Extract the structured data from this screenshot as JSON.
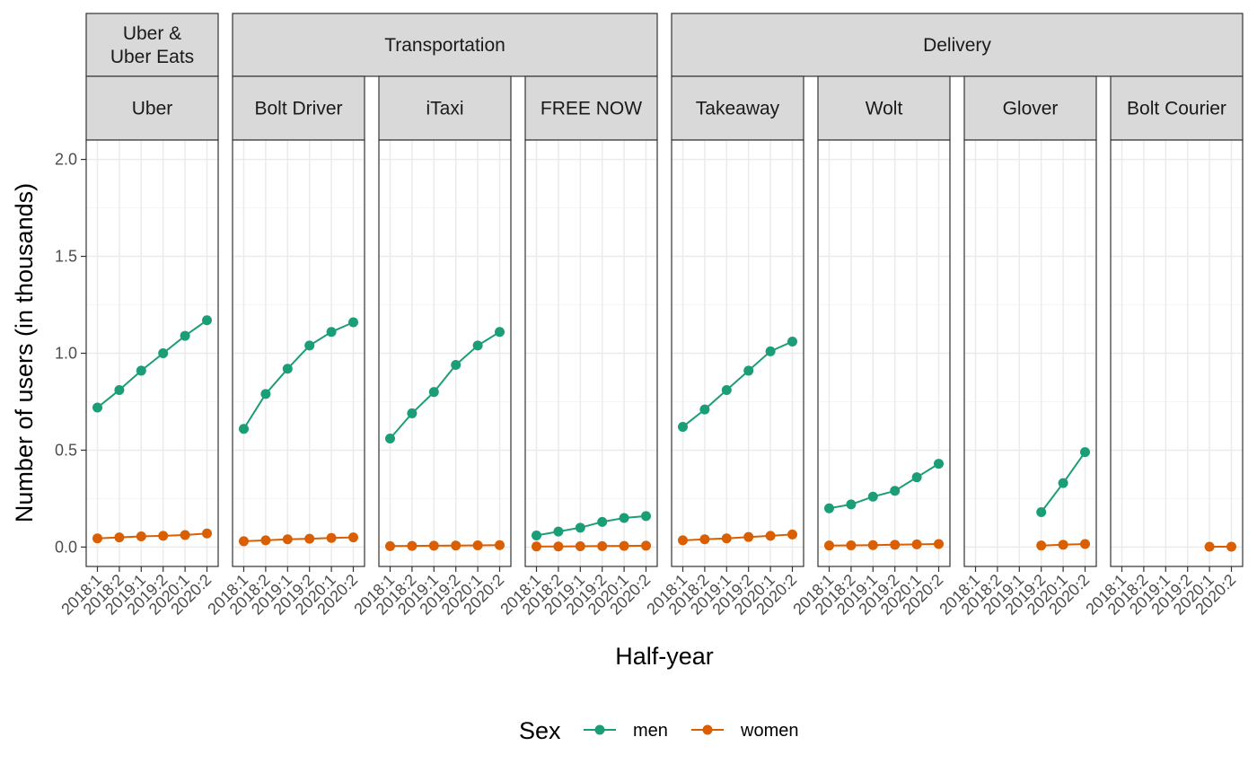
{
  "chart_data": {
    "type": "line",
    "xlabel": "Half-year",
    "ylabel": "Number of users (in thousands)",
    "ylim": [
      -0.1,
      2.1
    ],
    "yticks": [
      0.0,
      0.5,
      1.0,
      1.5,
      2.0
    ],
    "ytick_labels": [
      "0.0",
      "0.5",
      "1.0",
      "1.5",
      "2.0"
    ],
    "categories": [
      "2018:1",
      "2018:2",
      "2019:1",
      "2019:2",
      "2020:1",
      "2020:2"
    ],
    "grid": true,
    "legend": {
      "position": "bottom",
      "title": "Sex",
      "entries": [
        {
          "name": "men",
          "color": "#1B9E77"
        },
        {
          "name": "women",
          "color": "#D95F02"
        }
      ]
    },
    "groups": [
      {
        "label": "Uber &\nUber Eats",
        "label_lines": [
          "Uber &",
          "Uber Eats"
        ],
        "span": [
          "Uber",
          "Uber"
        ]
      },
      {
        "label": "Transportation",
        "label_lines": [
          "Transportation"
        ],
        "span": [
          "Bolt Driver",
          "FREE NOW"
        ]
      },
      {
        "label": "Delivery",
        "label_lines": [
          "Delivery"
        ],
        "span": [
          "Takeaway",
          "Bolt Courier"
        ]
      }
    ],
    "panels": [
      {
        "name": "Uber",
        "series": [
          {
            "name": "men",
            "values": [
              0.72,
              0.81,
              0.91,
              1.0,
              1.09,
              1.17
            ]
          },
          {
            "name": "women",
            "values": [
              0.045,
              0.05,
              0.055,
              0.058,
              0.062,
              0.07
            ]
          }
        ]
      },
      {
        "name": "Bolt Driver",
        "series": [
          {
            "name": "men",
            "values": [
              0.61,
              0.79,
              0.92,
              1.04,
              1.11,
              1.16
            ]
          },
          {
            "name": "women",
            "values": [
              0.03,
              0.035,
              0.04,
              0.043,
              0.047,
              0.05
            ]
          }
        ]
      },
      {
        "name": "iTaxi",
        "series": [
          {
            "name": "men",
            "values": [
              0.56,
              0.69,
              0.8,
              0.94,
              1.04,
              1.11
            ]
          },
          {
            "name": "women",
            "values": [
              0.005,
              0.006,
              0.007,
              0.008,
              0.009,
              0.01
            ]
          }
        ]
      },
      {
        "name": "FREE NOW",
        "series": [
          {
            "name": "men",
            "values": [
              0.06,
              0.08,
              0.1,
              0.13,
              0.15,
              0.16
            ]
          },
          {
            "name": "women",
            "values": [
              0.003,
              0.003,
              0.004,
              0.005,
              0.006,
              0.007
            ]
          }
        ]
      },
      {
        "name": "Takeaway",
        "series": [
          {
            "name": "men",
            "values": [
              0.62,
              0.71,
              0.81,
              0.91,
              1.01,
              1.06
            ]
          },
          {
            "name": "women",
            "values": [
              0.035,
              0.04,
              0.045,
              0.052,
              0.058,
              0.065
            ]
          }
        ]
      },
      {
        "name": "Wolt",
        "series": [
          {
            "name": "men",
            "values": [
              0.2,
              0.22,
              0.26,
              0.29,
              0.36,
              0.43
            ]
          },
          {
            "name": "women",
            "values": [
              0.008,
              0.009,
              0.01,
              0.012,
              0.014,
              0.016
            ]
          }
        ]
      },
      {
        "name": "Glover",
        "series": [
          {
            "name": "men",
            "values": [
              null,
              null,
              null,
              0.18,
              0.33,
              0.49
            ]
          },
          {
            "name": "women",
            "values": [
              null,
              null,
              null,
              0.008,
              0.012,
              0.016
            ]
          }
        ]
      },
      {
        "name": "Bolt Courier",
        "series": [
          {
            "name": "men",
            "values": [
              null,
              null,
              null,
              null,
              null,
              null
            ]
          },
          {
            "name": "women",
            "values": [
              null,
              null,
              null,
              null,
              0.002,
              0.002
            ]
          }
        ]
      }
    ],
    "colors": {
      "men": "#1B9E77",
      "women": "#D95F02",
      "strip_fill": "#D9D9D9",
      "grid_major": "#EBEBEB",
      "grid_minor": "#F5F5F5",
      "panel_border": "#333333"
    }
  }
}
